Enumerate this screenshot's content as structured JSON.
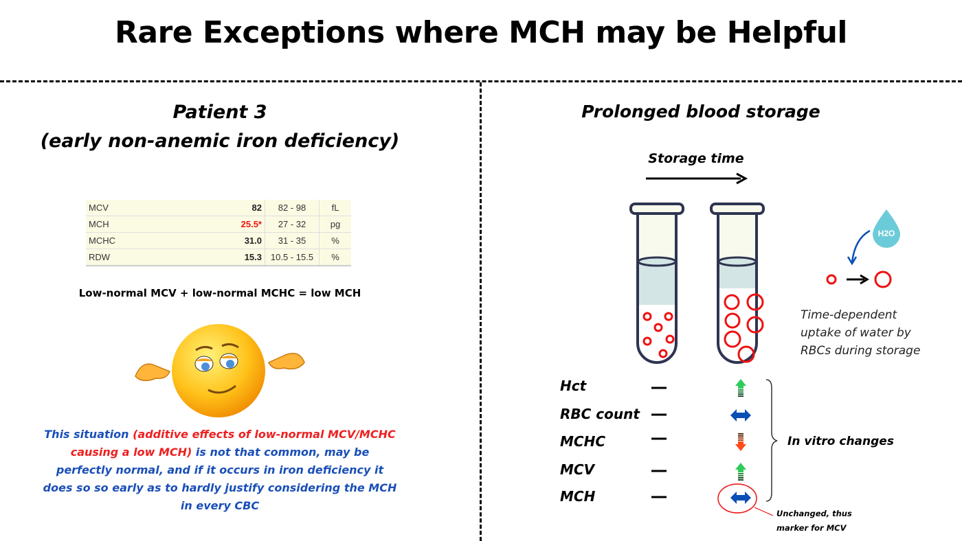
{
  "title": "Rare Exceptions where MCH may be Helpful",
  "left": {
    "heading_line1": "Patient 3",
    "heading_line2": "(early non-anemic iron deficiency)",
    "table": [
      {
        "param": "MCV",
        "value": "82",
        "range": "82 - 98",
        "unit": "fL",
        "flag": false
      },
      {
        "param": "MCH",
        "value": "25.5*",
        "range": "27 - 32",
        "unit": "pg",
        "flag": true
      },
      {
        "param": "MCHC",
        "value": "31.0",
        "range": "31 - 35",
        "unit": "%",
        "flag": false
      },
      {
        "param": "RDW",
        "value": "15.3",
        "range": "10.5 - 15.5",
        "unit": "%",
        "flag": false
      }
    ],
    "formula": "Low-normal MCV + low-normal MCHC = low MCH",
    "emoji": "shrugging-smiley-icon",
    "para_a": "This situation ",
    "para_b": "(additive effects of low-normal MCV/MCHC causing a low MCH)",
    "para_c": " is not that common, may be perfectly normal, and if it occurs in iron deficiency it does so so early as to hardly justify considering the MCH in every CBC"
  },
  "right": {
    "heading": "Prolonged blood storage",
    "storage_time": "Storage time",
    "water_label": "H2O",
    "water_desc_1": "Time-dependent",
    "water_desc_2": "uptake of water by",
    "water_desc_3": "RBCs during storage",
    "params": [
      {
        "name": "Hct",
        "change": "up"
      },
      {
        "name": "RBC count",
        "change": "unchanged"
      },
      {
        "name": "MCHC",
        "change": "down"
      },
      {
        "name": "MCV",
        "change": "up"
      },
      {
        "name": "MCH",
        "change": "unchanged"
      }
    ],
    "brace_label": "In vitro changes",
    "note_1": "Unchanged, thus",
    "note_2": "marker for MCV"
  },
  "colors": {
    "up": "#2ecc5a",
    "down": "#ff4a1a",
    "unchanged": "#0a4fb5",
    "rbc": "#ee1111",
    "water": "#6ccbd8",
    "text_blue": "#1a4fb8"
  }
}
